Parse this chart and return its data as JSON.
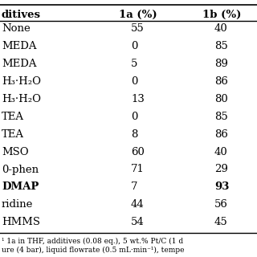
{
  "headers": [
    "ditives",
    "1a (%)",
    "1b (%)"
  ],
  "rows": [
    [
      "None",
      "55",
      "40"
    ],
    [
      "MEDA",
      "0",
      "85"
    ],
    [
      "MEDA",
      "5",
      "89"
    ],
    [
      "H₃·H₂O",
      "0",
      "86"
    ],
    [
      "H₃·H₂O",
      "13",
      "80"
    ],
    [
      "TEA",
      "0",
      "85"
    ],
    [
      "TEA",
      "8",
      "86"
    ],
    [
      "MSO",
      "60",
      "40"
    ],
    [
      "0-phen",
      "71",
      "29"
    ],
    [
      "DMAP",
      "7",
      "93"
    ],
    [
      "ridine",
      "44",
      "56"
    ],
    [
      "HMMS",
      "54",
      "45"
    ]
  ],
  "bold_row": 9,
  "bold_col2": 9,
  "footer": "¹ 1a in THF, additives (0.08 eq.), 5 wt.% Pt/C (1 d\nure (4 bar), liquid flowrate (0.5 mL·min⁻¹), tempe",
  "bg_color": "#ffffff",
  "header_border_top": true,
  "header_border_bottom": true
}
